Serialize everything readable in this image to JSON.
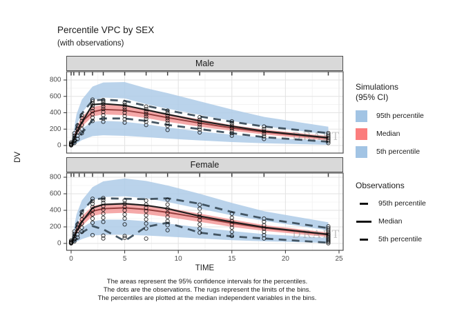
{
  "title": "Percentile VPC by SEX",
  "subtitle": "(with observations)",
  "watermark": "DRAFT",
  "axes": {
    "x_label": "TIME",
    "y_label": "DV",
    "x_ticks": [
      0,
      5,
      10,
      15,
      20,
      25
    ],
    "y_ticks": [
      0,
      200,
      400,
      600,
      800
    ]
  },
  "caption_lines": [
    "The areas represent the 95% confidence intervals for the percentiles.",
    "The dots are the observations. The rugs represent the limits of the bins.",
    "The percentiles are plotted at the median independent variables in the bins."
  ],
  "legends": {
    "simulations": {
      "title_line1": "Simulations",
      "title_line2": "(95% CI)",
      "items": [
        {
          "label": "95th percentile",
          "color": "#a2c4e4"
        },
        {
          "label": "Median",
          "color": "#fb7d7d"
        },
        {
          "label": "5th percentile",
          "color": "#a2c4e4"
        }
      ]
    },
    "observations": {
      "title": "Observations",
      "items": [
        {
          "label": "95th percentile",
          "style": "dash"
        },
        {
          "label": "Median",
          "style": "solid"
        },
        {
          "label": "5th percentile",
          "style": "dash"
        }
      ]
    }
  },
  "colors": {
    "band_blue": "#aecbe8",
    "band_red": "#f4a0a0",
    "sim_median_line": "#8b3232",
    "obs_median_line": "#1f1f1f",
    "obs_dash_line": "#3c4e5c",
    "strip_bg": "#d9d9d9",
    "panel_border": "#4d4d4d",
    "grid_major": "#e2e2e2",
    "grid_minor": "#f0f0f0",
    "tick_label": "#4d4d4d",
    "watermark": "#9e9e9e",
    "dot_stroke": "#000000"
  },
  "chart_data": {
    "type": "line",
    "title": "Percentile VPC by SEX",
    "xlabel": "TIME",
    "ylabel": "DV",
    "xlim": [
      0,
      25
    ],
    "ylim": [
      0,
      800
    ],
    "x_ticks": [
      0,
      5,
      10,
      15,
      20,
      25
    ],
    "y_ticks": [
      0,
      200,
      400,
      600,
      800
    ],
    "x_minor": [
      2.5,
      7.5,
      12.5,
      17.5,
      22.5
    ],
    "y_minor": [
      100,
      300,
      500,
      700
    ],
    "bin_limits": [
      0,
      0.25,
      0.75,
      1.25,
      2,
      3,
      5,
      7,
      9,
      12,
      15,
      18,
      24
    ],
    "x": [
      0.1,
      0.5,
      1,
      2,
      3,
      5,
      7,
      9,
      12,
      15,
      18,
      24
    ],
    "facets": [
      {
        "label": "Male",
        "sim_p95_hi": [
          70,
          380,
          560,
          720,
          770,
          775,
          700,
          640,
          540,
          440,
          350,
          230
        ],
        "sim_p95_lo": [
          25,
          240,
          400,
          555,
          585,
          575,
          505,
          450,
          375,
          300,
          235,
          135
        ],
        "sim_med_hi": [
          30,
          220,
          350,
          470,
          500,
          490,
          445,
          390,
          320,
          250,
          195,
          115
        ],
        "sim_med_lo": [
          10,
          120,
          230,
          355,
          380,
          370,
          335,
          290,
          230,
          180,
          135,
          60
        ],
        "sim_median": [
          20,
          170,
          290,
          410,
          440,
          430,
          390,
          340,
          275,
          215,
          165,
          88
        ],
        "sim_p5_hi": [
          15,
          115,
          205,
          290,
          300,
          290,
          260,
          220,
          172,
          132,
          97,
          58
        ],
        "sim_p5_lo": [
          0,
          25,
          65,
          115,
          125,
          118,
          102,
          85,
          62,
          42,
          27,
          8
        ],
        "obs_median": [
          10,
          150,
          280,
          500,
          510,
          490,
          435,
          380,
          300,
          235,
          175,
          95
        ],
        "obs_p95": [
          32,
          225,
          390,
          550,
          560,
          545,
          485,
          430,
          355,
          290,
          232,
          152
        ],
        "obs_p5": [
          2,
          60,
          150,
          310,
          330,
          330,
          300,
          252,
          200,
          150,
          102,
          46
        ],
        "observations": [
          [
            0,
            [
              2,
              6,
              10,
              16,
              24,
              38
            ]
          ],
          [
            0.3,
            [
              30,
              60,
              90,
              120,
              150
            ]
          ],
          [
            0.6,
            [
              80,
              120,
              160,
              200,
              245
            ]
          ],
          [
            1,
            [
              150,
              200,
              250,
              300,
              335,
              370
            ]
          ],
          [
            2,
            [
              300,
              340,
              380,
              420,
              455,
              485,
              515,
              540,
              560
            ]
          ],
          [
            3,
            [
              290,
              330,
              370,
              410,
              445,
              475,
              505,
              530,
              555
            ]
          ],
          [
            5,
            [
              280,
              320,
              360,
              400,
              435,
              465,
              495,
              525
            ]
          ],
          [
            7,
            [
              250,
              290,
              325,
              355,
              385,
              415,
              445,
              475
            ]
          ],
          [
            9,
            [
              190,
              240,
              275,
              305,
              335,
              365,
              395,
              425
            ]
          ],
          [
            12,
            [
              160,
              195,
              225,
              255,
              285,
              315,
              345
            ]
          ],
          [
            15,
            [
              120,
              150,
              180,
              210,
              240,
              270,
              295
            ]
          ],
          [
            18,
            [
              80,
              112,
              142,
              172,
              202,
              232
            ]
          ],
          [
            24,
            [
              30,
              52,
              72,
              92,
              112,
              132,
              152
            ]
          ]
        ]
      },
      {
        "label": "Female",
        "sim_p95_hi": [
          65,
          350,
          520,
          680,
          750,
          785,
          755,
          700,
          600,
          490,
          390,
          255
        ],
        "sim_p95_lo": [
          22,
          220,
          380,
          520,
          560,
          570,
          545,
          500,
          420,
          340,
          272,
          158
        ],
        "sim_med_hi": [
          28,
          200,
          330,
          450,
          480,
          490,
          470,
          430,
          360,
          290,
          222,
          132
        ],
        "sim_med_lo": [
          8,
          110,
          210,
          330,
          360,
          370,
          352,
          320,
          260,
          200,
          152,
          78
        ],
        "sim_median": [
          18,
          155,
          270,
          390,
          420,
          430,
          410,
          375,
          310,
          245,
          187,
          105
        ],
        "sim_p5_hi": [
          14,
          108,
          190,
          268,
          288,
          288,
          268,
          240,
          194,
          150,
          112,
          66
        ],
        "sim_p5_lo": [
          0,
          20,
          52,
          95,
          105,
          105,
          96,
          82,
          60,
          40,
          26,
          6
        ],
        "obs_median": [
          10,
          140,
          260,
          430,
          470,
          480,
          460,
          420,
          330,
          260,
          195,
          110
        ],
        "obs_p95": [
          30,
          215,
          385,
          530,
          545,
          540,
          535,
          545,
          480,
          380,
          300,
          185
        ],
        "obs_p5": [
          2,
          50,
          130,
          210,
          170,
          30,
          200,
          250,
          130,
          85,
          60,
          8
        ],
        "observations": [
          [
            0,
            [
              1,
              5,
              9,
              14,
              22,
              35
            ]
          ],
          [
            0.3,
            [
              25,
              55,
              85,
              115,
              145
            ]
          ],
          [
            0.6,
            [
              70,
              110,
              150,
              190,
              230
            ]
          ],
          [
            1,
            [
              140,
              190,
              240,
              290,
              335,
              380
            ]
          ],
          [
            2,
            [
              100,
              250,
              300,
              350,
              400,
              440,
              480,
              512,
              540
            ]
          ],
          [
            3,
            [
              60,
              95,
              260,
              310,
              360,
              410,
              450,
              490,
              522,
              548
            ]
          ],
          [
            5,
            [
              67,
              90,
              230,
              300,
              350,
              400,
              440,
              480,
              520
            ]
          ],
          [
            7,
            [
              58,
              180,
              240,
              290,
              340,
              390,
              430,
              470,
              518
            ]
          ],
          [
            9,
            [
              160,
              220,
              270,
              320,
              370,
              420,
              470,
              528
            ]
          ],
          [
            12,
            [
              130,
              180,
              230,
              280,
              320,
              360,
              420,
              468
            ]
          ],
          [
            15,
            [
              90,
              140,
              190,
              230,
              270,
              310,
              358
            ]
          ],
          [
            18,
            [
              60,
              100,
              140,
              180,
              220,
              262,
              300
            ]
          ],
          [
            24,
            [
              2,
              16,
              30,
              45,
              60,
              75,
              90,
              105,
              120,
              140,
              162,
              184,
              206
            ]
          ]
        ]
      }
    ]
  }
}
